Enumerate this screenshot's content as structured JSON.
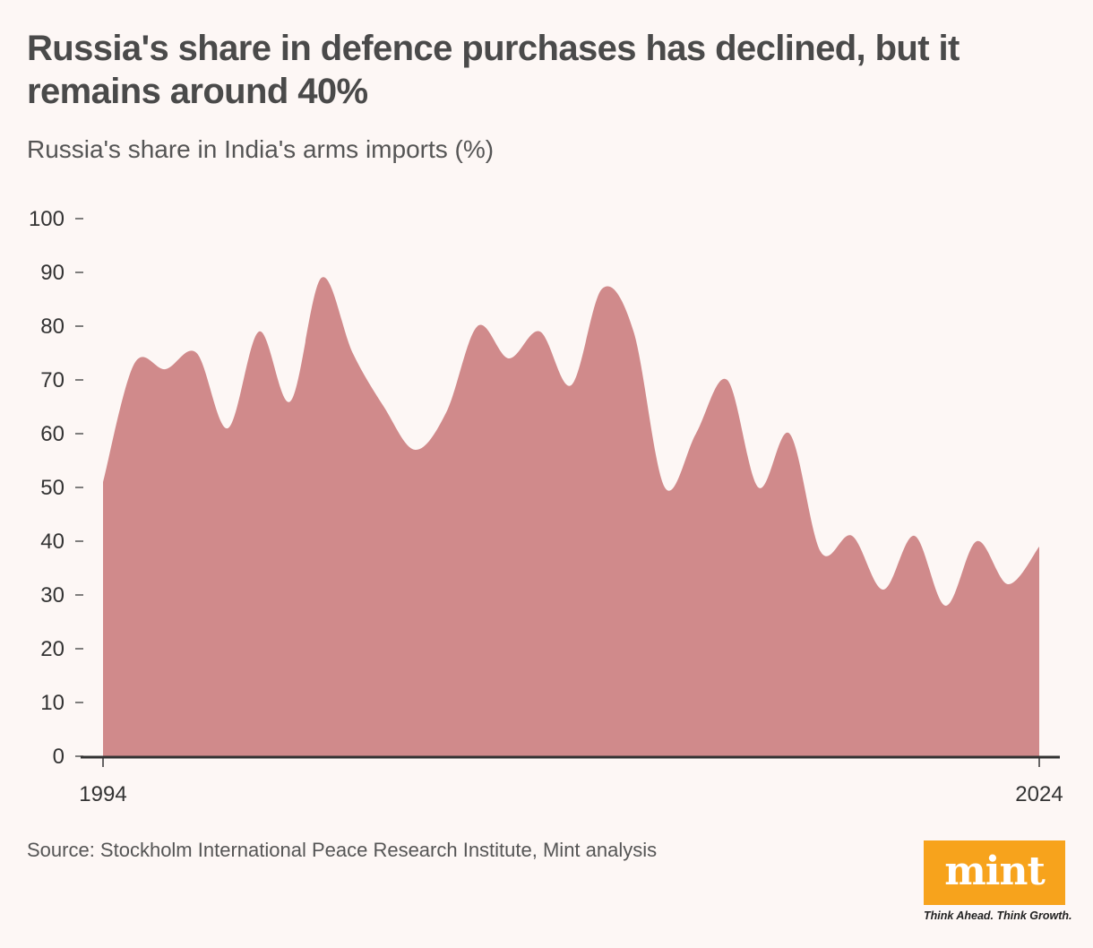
{
  "title": "Russia's share in defence purchases has declined, but it remains around 40%",
  "subtitle": "Russia's share in India's arms imports (%)",
  "source": "Source: Stockholm International Peace Research Institute, Mint analysis",
  "logo": {
    "text": "mint",
    "tagline": "Think Ahead. Think Growth."
  },
  "colors": {
    "area": "#d08a8b",
    "background": "#fdf7f5",
    "axis": "#333333"
  },
  "chart_data": {
    "type": "area",
    "title": "Russia's share in India's arms imports (%)",
    "xlabel": "",
    "ylabel": "",
    "x": [
      1994,
      1995,
      1996,
      1997,
      1998,
      1999,
      2000,
      2001,
      2002,
      2003,
      2004,
      2005,
      2006,
      2007,
      2008,
      2009,
      2010,
      2011,
      2012,
      2013,
      2014,
      2015,
      2016,
      2017,
      2018,
      2019,
      2020,
      2021,
      2022,
      2023,
      2024
    ],
    "values": [
      51,
      73,
      72,
      75,
      61,
      79,
      66,
      89,
      75,
      65,
      57,
      64,
      80,
      74,
      79,
      69,
      87,
      79,
      50,
      60,
      70,
      50,
      60,
      38,
      41,
      31,
      41,
      28,
      40,
      32,
      39
    ],
    "ylim": [
      0,
      100
    ],
    "yticks": [
      0,
      10,
      20,
      30,
      40,
      50,
      60,
      70,
      80,
      90,
      100
    ],
    "xtick_labels": [
      "1994",
      "2024"
    ],
    "grid": false,
    "series": [
      {
        "name": "Russia's share in India's arms imports (%)",
        "values": [
          51,
          73,
          72,
          75,
          61,
          79,
          66,
          89,
          75,
          65,
          57,
          64,
          80,
          74,
          79,
          69,
          87,
          79,
          50,
          60,
          70,
          50,
          60,
          38,
          41,
          31,
          41,
          28,
          40,
          32,
          39
        ]
      }
    ]
  }
}
